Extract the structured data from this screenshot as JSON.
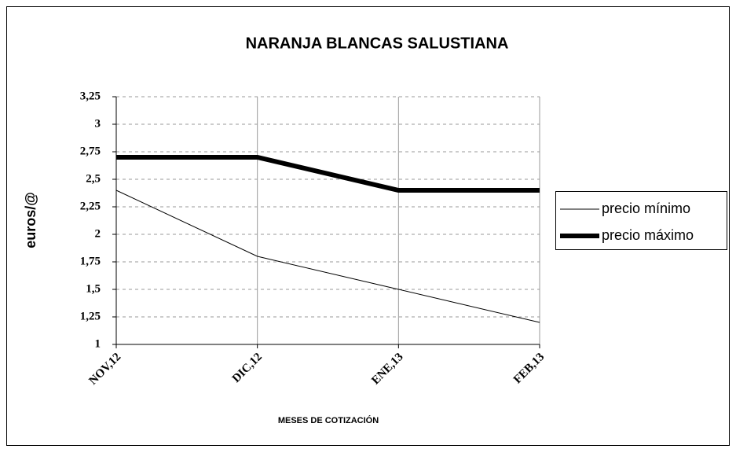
{
  "chart_data": {
    "type": "line",
    "title": "NARANJA  BLANCAS SALUSTIANA",
    "ylabel": "euros/@",
    "xlabel": "MESES DE COTIZACIÓN",
    "categories": [
      "NOV,12",
      "DIC,12",
      "ENE,13",
      "FEB,13"
    ],
    "series": [
      {
        "name": "precio mínimo",
        "color": "#000000",
        "linewidth": 1,
        "values": [
          2.4,
          1.8,
          1.5,
          1.2
        ]
      },
      {
        "name": "precio máximo",
        "color": "#000000",
        "linewidth": 6,
        "values": [
          2.7,
          2.7,
          2.4,
          2.4
        ]
      }
    ],
    "ylim": [
      1,
      3.25
    ],
    "yticks": [
      1,
      {
        "value": 1.25,
        "label": "1,25"
      },
      {
        "value": 1.5,
        "label": "1,5"
      },
      {
        "value": 1.75,
        "label": "1,75"
      },
      2,
      {
        "value": 2.25,
        "label": "2,25"
      },
      {
        "value": 2.5,
        "label": "2,5"
      },
      {
        "value": 2.75,
        "label": "2,75"
      },
      3,
      {
        "value": 3.25,
        "label": "3,25"
      }
    ],
    "grid": true,
    "legend": "right"
  }
}
